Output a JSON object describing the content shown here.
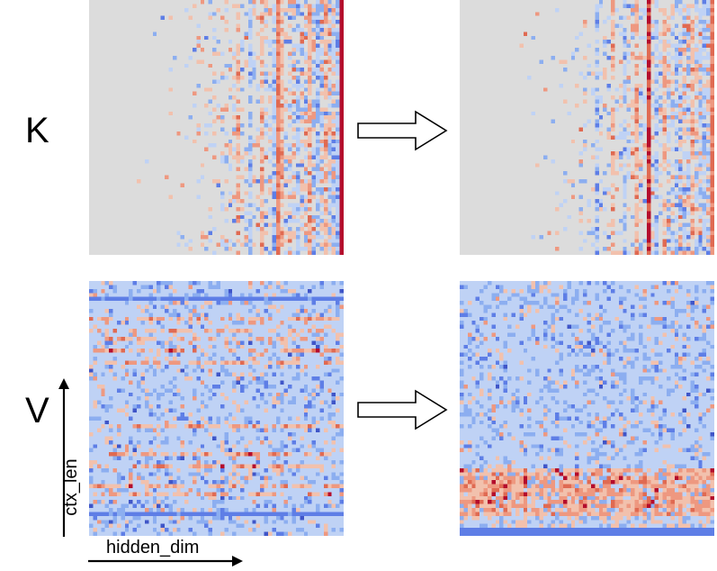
{
  "labels": {
    "k_row": "K",
    "v_row": "V",
    "x_axis": "hidden_dim",
    "y_axis": "ctx_len"
  },
  "colors": {
    "background_gray": "#dcdcdc",
    "light_blue": "#bfd2f5",
    "mid_blue": "#8caef0",
    "strong_blue": "#5e7ee6",
    "deep_blue": "#3f55c8",
    "light_red": "#f2c1ad",
    "mid_red": "#ee9880",
    "strong_red": "#e06a52",
    "deep_red": "#b40c2c",
    "arrow_outline": "#000000",
    "arrow_fill": "#ffffff"
  },
  "panels": [
    {
      "name": "k-before-heatmap",
      "kind": "K",
      "state": "before"
    },
    {
      "name": "k-after-heatmap",
      "kind": "K",
      "state": "after"
    },
    {
      "name": "v-before-heatmap",
      "kind": "V",
      "state": "before"
    },
    {
      "name": "v-after-heatmap",
      "kind": "V",
      "state": "after"
    }
  ]
}
